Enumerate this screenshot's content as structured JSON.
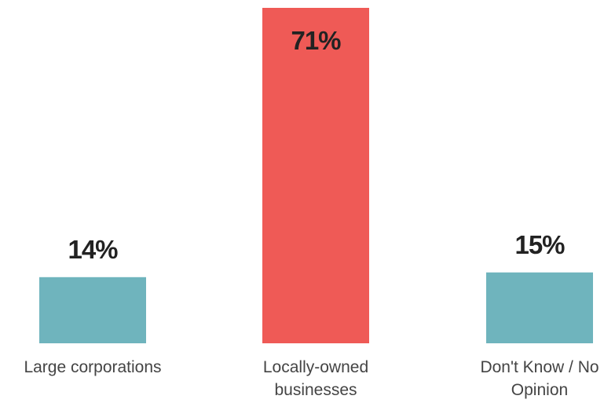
{
  "chart_data": {
    "type": "bar",
    "categories": [
      "Large corporations",
      "Locally-owned businesses",
      "Don't Know / No Opinion"
    ],
    "category_label_lines": [
      [
        "Large corporations"
      ],
      [
        "Locally-owned",
        "businesses"
      ],
      [
        "Don't Know / No",
        "Opinion"
      ]
    ],
    "values": [
      14,
      71,
      15
    ],
    "value_labels": [
      "14%",
      "71%",
      "15%"
    ],
    "colors": [
      "#6fb4bd",
      "#ef5a56",
      "#6fb4bd"
    ],
    "ylim": [
      0,
      71
    ],
    "grid": false,
    "legend": "none"
  }
}
